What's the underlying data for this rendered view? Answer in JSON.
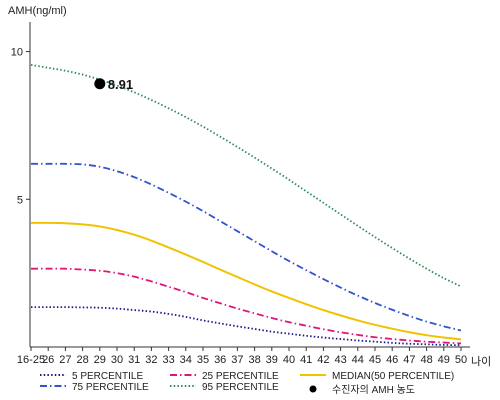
{
  "chart_data": {
    "type": "line",
    "ylabel": "AMH(ng/ml)",
    "xlabel": "나이",
    "ylim": [
      0,
      11
    ],
    "y_ticks": [
      5,
      10
    ],
    "categories": [
      "16-25",
      "26",
      "27",
      "28",
      "29",
      "30",
      "31",
      "32",
      "33",
      "34",
      "35",
      "36",
      "37",
      "38",
      "39",
      "40",
      "41",
      "42",
      "43",
      "44",
      "45",
      "46",
      "47",
      "48",
      "49",
      "50"
    ],
    "series": [
      {
        "name": "5 PERCENTILE",
        "color": "#1a1a8c",
        "dash": "dot",
        "values": [
          1.35,
          1.35,
          1.35,
          1.34,
          1.33,
          1.3,
          1.25,
          1.2,
          1.12,
          1.02,
          0.9,
          0.8,
          0.7,
          0.61,
          0.52,
          0.45,
          0.38,
          0.32,
          0.27,
          0.22,
          0.18,
          0.14,
          0.11,
          0.09,
          0.07,
          0.06
        ]
      },
      {
        "name": "25 PERCENTILE",
        "color": "#e0157a",
        "dash": "dashdot",
        "values": [
          2.65,
          2.65,
          2.65,
          2.62,
          2.58,
          2.5,
          2.38,
          2.22,
          2.04,
          1.86,
          1.66,
          1.48,
          1.3,
          1.14,
          0.98,
          0.84,
          0.72,
          0.6,
          0.5,
          0.41,
          0.33,
          0.27,
          0.22,
          0.18,
          0.15,
          0.12
        ]
      },
      {
        "name": "MEDIAN(50 PERCENTILE)",
        "color": "#f2c200",
        "dash": "solid",
        "values": [
          4.2,
          4.2,
          4.19,
          4.15,
          4.08,
          3.96,
          3.8,
          3.6,
          3.37,
          3.13,
          2.88,
          2.62,
          2.37,
          2.12,
          1.88,
          1.66,
          1.45,
          1.25,
          1.07,
          0.9,
          0.75,
          0.62,
          0.5,
          0.4,
          0.32,
          0.26
        ]
      },
      {
        "name": "75 PERCENTILE",
        "color": "#3355cc",
        "dash": "dashdot",
        "values": [
          6.2,
          6.2,
          6.2,
          6.18,
          6.1,
          5.95,
          5.75,
          5.5,
          5.22,
          4.92,
          4.6,
          4.26,
          3.92,
          3.58,
          3.24,
          2.91,
          2.6,
          2.3,
          2.01,
          1.74,
          1.49,
          1.26,
          1.05,
          0.86,
          0.7,
          0.56
        ]
      },
      {
        "name": "95 PERCENTILE",
        "color": "#2e8b57",
        "dash": "dot",
        "values": [
          9.55,
          9.45,
          9.35,
          9.22,
          9.05,
          8.85,
          8.62,
          8.36,
          8.08,
          7.78,
          7.46,
          7.12,
          6.77,
          6.41,
          6.04,
          5.66,
          5.27,
          4.88,
          4.49,
          4.1,
          3.72,
          3.35,
          2.99,
          2.65,
          2.33,
          2.05
        ]
      }
    ],
    "annotation": {
      "category": "29",
      "value": 8.91,
      "label": "8.91"
    },
    "marker_legend": "수진자의 AMH 농도",
    "grid": false,
    "legend_position": "bottom"
  }
}
